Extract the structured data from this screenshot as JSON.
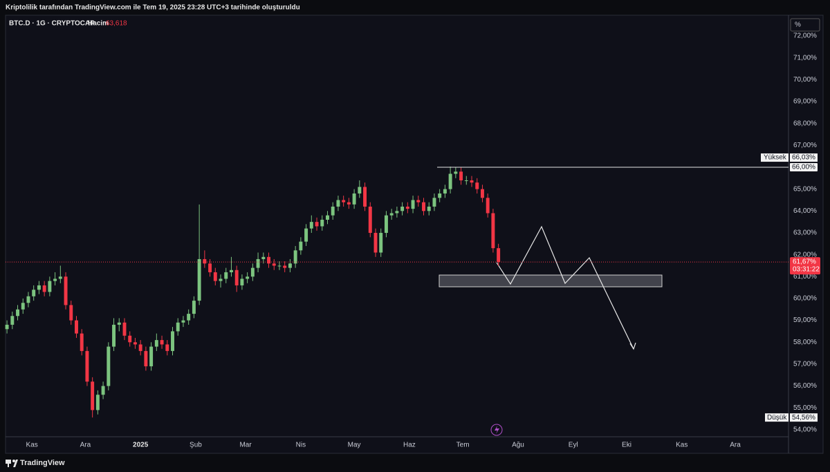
{
  "header": {
    "caption": "Kriptolilik tarafından TradingView.com ile Tem 19, 2025 23:28 UTC+3 tarihinde oluşturuldu"
  },
  "footer": {
    "brand": "TradingView"
  },
  "chart_data": {
    "type": "candlestick",
    "symbol": "BTC.D · 1G · CRYPTOCAP",
    "volume": {
      "name": "Hacim",
      "value": 63.618,
      "label": "63,618"
    },
    "y_unit": "%",
    "up_color": "#7cc47f",
    "down_color": "#f23645",
    "grid": false,
    "xlim": [
      -0.27,
      146.3
    ],
    "xticks": [
      {
        "value": 4.67,
        "label": "Kas"
      },
      {
        "value": 14.67,
        "label": "Ara"
      },
      {
        "value": 25,
        "label": "2025"
      },
      {
        "value": 35.33,
        "label": "Şub"
      },
      {
        "value": 44.67,
        "label": "Mar"
      },
      {
        "value": 55,
        "label": "Nis"
      },
      {
        "value": 65,
        "label": "May"
      },
      {
        "value": 75.33,
        "label": "Haz"
      },
      {
        "value": 85.33,
        "label": "Tem"
      },
      {
        "value": 95.67,
        "label": "Ağu"
      },
      {
        "value": 106,
        "label": "Eyl"
      },
      {
        "value": 116,
        "label": "Eki"
      },
      {
        "value": 126.33,
        "label": "Kas"
      },
      {
        "value": 136.33,
        "label": "Ara"
      }
    ],
    "ylim": [
      53.68,
      72.95
    ],
    "yticks": [
      {
        "value": 54,
        "label": "54,00%"
      },
      {
        "value": 55,
        "label": "55,00%"
      },
      {
        "value": 56,
        "label": "56,00%"
      },
      {
        "value": 57,
        "label": "57,00%"
      },
      {
        "value": 58,
        "label": "58,00%"
      },
      {
        "value": 59,
        "label": "59,00%"
      },
      {
        "value": 60,
        "label": "60,00%"
      },
      {
        "value": 61,
        "label": "61,00%"
      },
      {
        "value": 62,
        "label": "62,00%"
      },
      {
        "value": 63,
        "label": "63,00%"
      },
      {
        "value": 64,
        "label": "64,00%"
      },
      {
        "value": 65,
        "label": "65,00%"
      },
      {
        "value": 67,
        "label": "67,00%"
      },
      {
        "value": 68,
        "label": "68,00%"
      },
      {
        "value": 69,
        "label": "69,00%"
      },
      {
        "value": 70,
        "label": "70,00%"
      },
      {
        "value": 71,
        "label": "71,00%"
      },
      {
        "value": 72,
        "label": "72,00%"
      }
    ],
    "open": [
      58.6,
      58.8,
      59.2,
      59.5,
      59.8,
      60.1,
      60.4,
      60.6,
      60.3,
      60.8,
      60.9,
      61.0,
      59.7,
      59.0,
      58.4,
      57.6,
      56.2,
      54.9,
      55.6,
      56.0,
      57.8,
      58.8,
      58.9,
      58.3,
      58.0,
      57.9,
      57.6,
      56.9,
      57.8,
      58.1,
      57.9,
      57.6,
      58.5,
      58.9,
      59.0,
      59.3,
      59.9,
      61.8,
      61.6,
      61.2,
      60.8,
      60.9,
      61.2,
      61.3,
      60.6,
      60.9,
      61.0,
      61.4,
      61.8,
      61.9,
      61.6,
      61.5,
      61.5,
      61.4,
      61.6,
      62.2,
      62.6,
      63.2,
      63.5,
      63.3,
      63.6,
      63.8,
      64.2,
      64.5,
      64.4,
      64.3,
      64.8,
      65.1,
      64.2,
      63.0,
      62.1,
      63.0,
      63.8,
      63.9,
      64.0,
      64.2,
      64.1,
      64.5,
      64.4,
      64.0,
      64.2,
      64.6,
      64.8,
      65.0,
      65.7,
      65.8,
      65.4,
      65.4,
      65.3,
      65.0,
      64.6,
      63.9,
      62.3
    ],
    "high": [
      59.0,
      59.4,
      59.7,
      60.0,
      60.3,
      60.6,
      60.8,
      60.8,
      61.0,
      61.2,
      61.5,
      61.2,
      59.9,
      59.2,
      58.6,
      57.8,
      56.4,
      55.8,
      56.2,
      58.0,
      59.1,
      59.1,
      59.1,
      58.5,
      58.2,
      58.1,
      57.8,
      58.0,
      58.4,
      58.3,
      58.1,
      58.7,
      59.1,
      59.2,
      59.5,
      60.1,
      64.3,
      62.2,
      61.8,
      61.4,
      61.1,
      61.4,
      61.9,
      61.5,
      61.1,
      61.2,
      61.6,
      62.1,
      62.1,
      62.1,
      61.8,
      61.7,
      61.7,
      61.8,
      62.4,
      62.8,
      63.4,
      63.8,
      63.7,
      63.8,
      64.0,
      64.4,
      64.7,
      64.7,
      64.6,
      65.0,
      65.4,
      65.3,
      64.4,
      63.2,
      63.2,
      64.0,
      64.1,
      64.2,
      64.4,
      64.4,
      64.7,
      64.7,
      64.6,
      64.4,
      64.8,
      65.0,
      65.2,
      66.03,
      66.0,
      66.0,
      65.6,
      65.6,
      65.5,
      65.2,
      64.8,
      64.1,
      62.5
    ],
    "low": [
      58.4,
      58.6,
      59.0,
      59.3,
      59.6,
      59.9,
      60.2,
      60.1,
      60.1,
      60.6,
      60.7,
      59.5,
      58.8,
      58.2,
      57.4,
      56.0,
      54.56,
      54.7,
      55.4,
      55.8,
      57.6,
      58.5,
      58.1,
      57.8,
      57.7,
      57.4,
      56.7,
      56.7,
      57.6,
      57.7,
      57.4,
      57.4,
      58.3,
      58.7,
      58.8,
      59.1,
      59.7,
      61.4,
      61.0,
      60.6,
      60.5,
      60.7,
      61.0,
      60.3,
      60.4,
      60.7,
      60.8,
      61.2,
      61.6,
      61.4,
      61.3,
      61.3,
      61.2,
      61.2,
      61.4,
      62.0,
      62.4,
      63.0,
      63.1,
      63.1,
      63.4,
      63.6,
      64.0,
      64.2,
      64.1,
      64.1,
      64.6,
      64.0,
      62.8,
      61.9,
      61.9,
      62.8,
      63.6,
      63.7,
      63.8,
      63.9,
      63.9,
      64.2,
      63.8,
      63.8,
      64.0,
      64.4,
      64.6,
      64.8,
      65.5,
      65.2,
      65.2,
      65.1,
      64.8,
      64.4,
      63.7,
      62.1,
      61.5
    ],
    "close": [
      58.8,
      59.2,
      59.5,
      59.8,
      60.1,
      60.4,
      60.6,
      60.3,
      60.8,
      60.9,
      61.0,
      59.7,
      59.0,
      58.4,
      57.6,
      56.2,
      54.9,
      55.6,
      56.0,
      57.8,
      58.8,
      58.9,
      58.3,
      58.0,
      57.9,
      57.6,
      56.9,
      57.8,
      58.1,
      57.9,
      57.6,
      58.5,
      58.9,
      59.0,
      59.3,
      59.9,
      61.8,
      61.6,
      61.2,
      60.8,
      60.9,
      61.2,
      61.3,
      60.6,
      60.9,
      61.0,
      61.4,
      61.8,
      61.9,
      61.6,
      61.5,
      61.5,
      61.4,
      61.6,
      62.2,
      62.6,
      63.2,
      63.5,
      63.3,
      63.6,
      63.8,
      64.2,
      64.5,
      64.4,
      64.3,
      64.8,
      65.1,
      64.2,
      63.0,
      62.1,
      63.0,
      63.8,
      63.9,
      64.0,
      64.2,
      64.1,
      64.5,
      64.4,
      64.0,
      64.2,
      64.6,
      64.8,
      65.0,
      65.7,
      65.8,
      65.4,
      65.4,
      65.3,
      65.0,
      64.6,
      63.9,
      62.3,
      61.67
    ],
    "high_marker": {
      "label": "Yüksek",
      "value": 66.03,
      "value_label": "66,03%"
    },
    "low_marker": {
      "label": "Düşük",
      "value": 54.56,
      "value_label": "54,56%"
    },
    "hline": {
      "value": 66.0,
      "label": "66,00%"
    },
    "last_price": {
      "value": 61.67,
      "label": "61,67%",
      "countdown": "03:31:22"
    }
  }
}
